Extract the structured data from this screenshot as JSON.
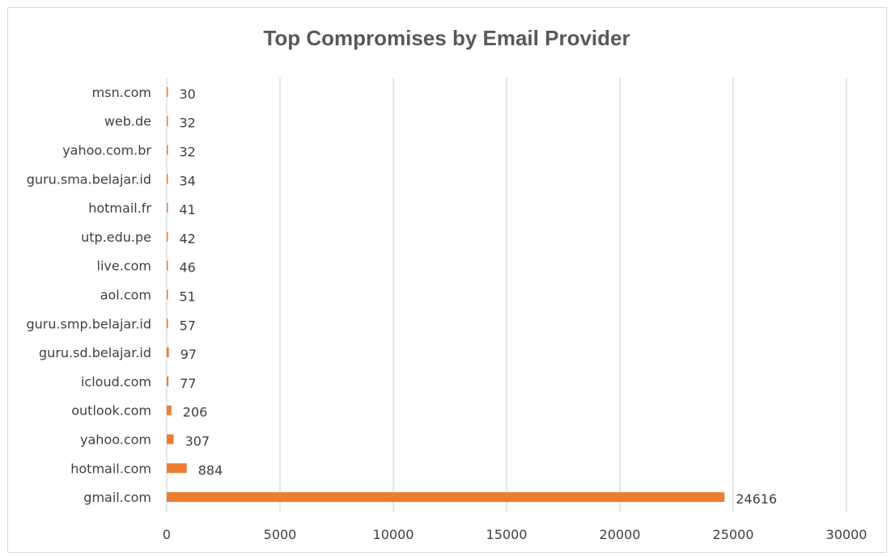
{
  "chart_data": {
    "type": "bar",
    "orientation": "horizontal",
    "title": "Top Compromises by Email Provider",
    "categories": [
      "msn.com",
      "web.de",
      "yahoo.com.br",
      "guru.sma.belajar.id",
      "hotmail.fr",
      "utp.edu.pe",
      "live.com",
      "aol.com",
      "guru.smp.belajar.id",
      "guru.sd.belajar.id",
      "icloud.com",
      "outlook.com",
      "yahoo.com",
      "hotmail.com",
      "gmail.com"
    ],
    "values": [
      30,
      32,
      32,
      34,
      41,
      42,
      46,
      51,
      57,
      97,
      77,
      206,
      307,
      884,
      24616
    ],
    "xlim": [
      0,
      30000
    ],
    "xticks": [
      0,
      5000,
      10000,
      15000,
      20000,
      25000,
      30000
    ],
    "bar_color": "#ed7d31",
    "grid": true,
    "legend": "none",
    "data_labels": true
  }
}
